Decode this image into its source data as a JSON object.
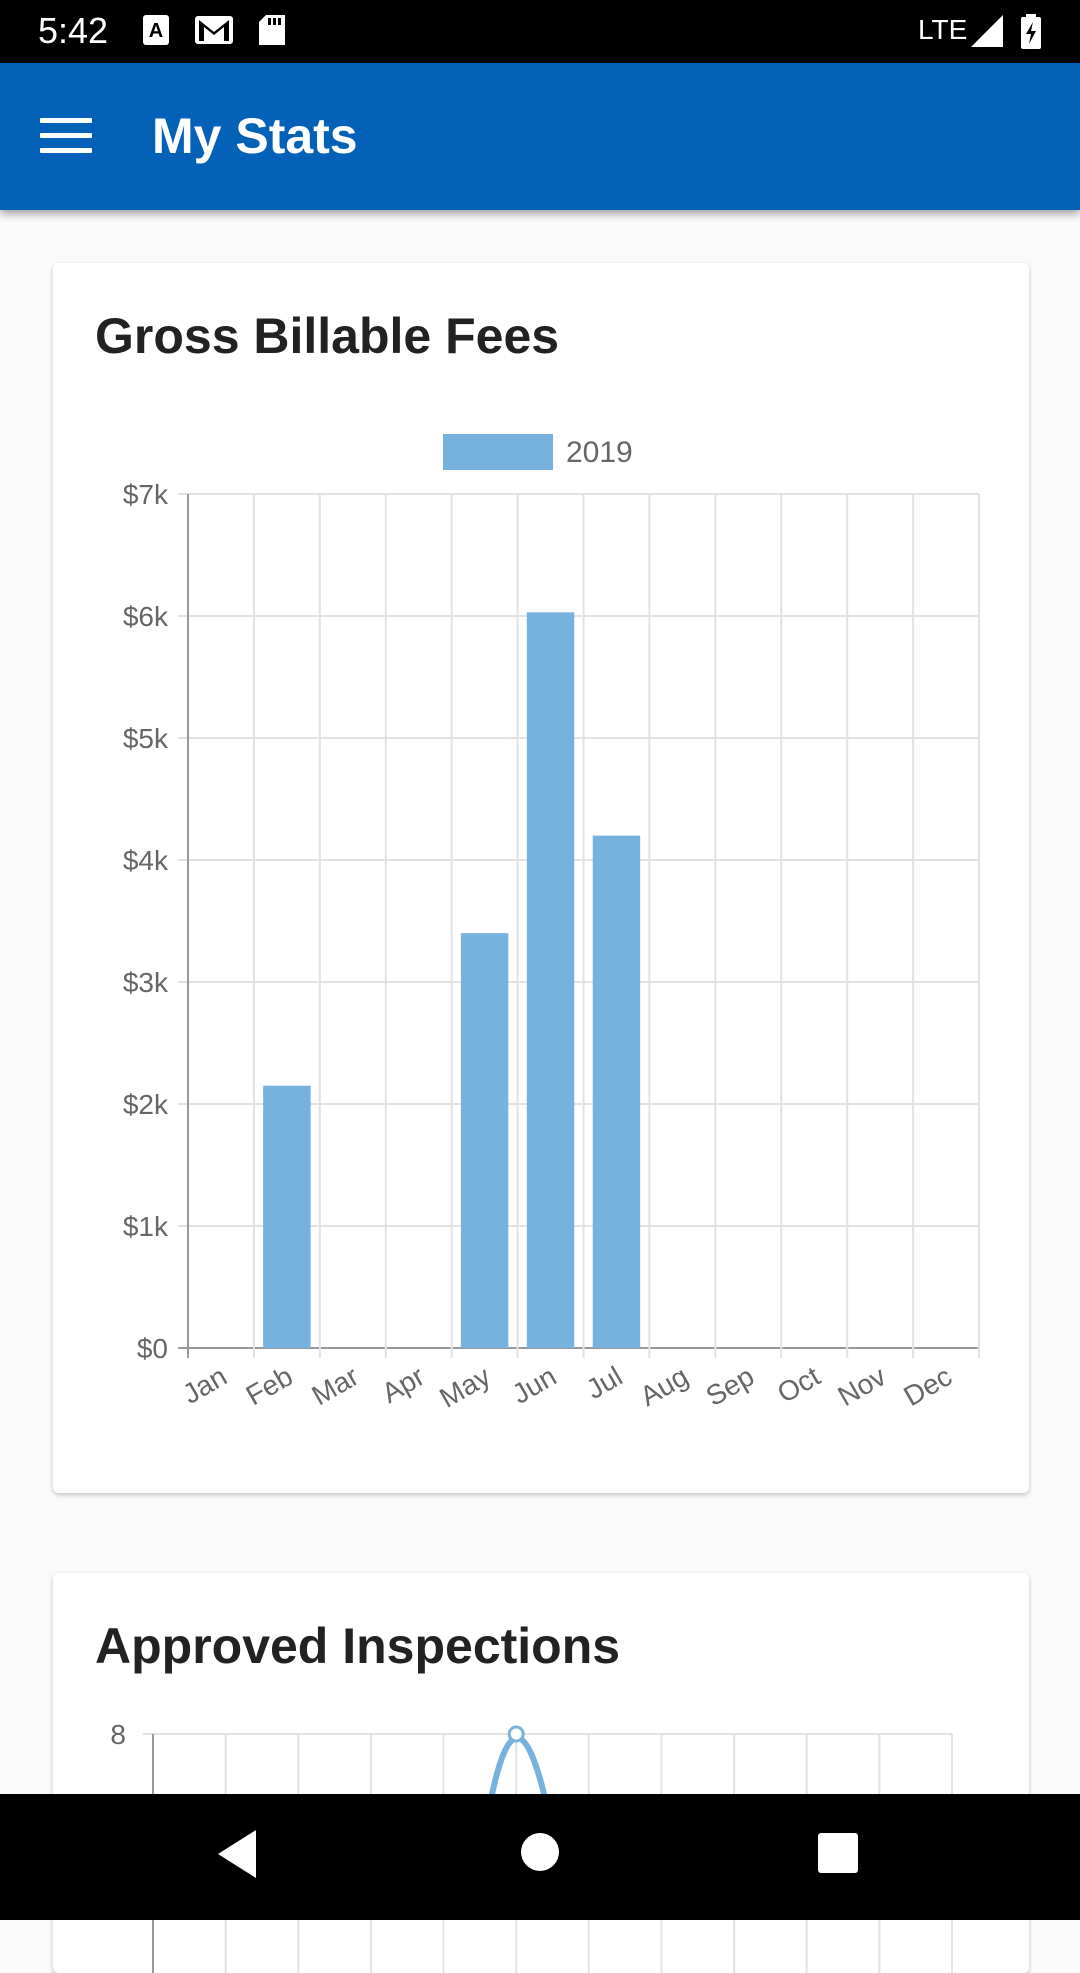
{
  "status_bar": {
    "time": "5:42",
    "network": "LTE"
  },
  "app_bar": {
    "title": "My Stats"
  },
  "cards": [
    {
      "title": "Gross Billable Fees"
    },
    {
      "title": "Approved Inspections"
    }
  ],
  "chart_data": [
    {
      "type": "bar",
      "title": "Gross Billable Fees",
      "categories": [
        "Jan",
        "Feb",
        "Mar",
        "Apr",
        "May",
        "Jun",
        "Jul",
        "Aug",
        "Sep",
        "Oct",
        "Nov",
        "Dec"
      ],
      "series": [
        {
          "name": "2019",
          "values": [
            0,
            2150,
            0,
            0,
            3400,
            6030,
            4200,
            0,
            0,
            0,
            0,
            0
          ]
        }
      ],
      "y_tick_labels": [
        "$0",
        "$1k",
        "$2k",
        "$3k",
        "$4k",
        "$5k",
        "$6k",
        "$7k"
      ],
      "ylim": [
        0,
        7000
      ],
      "grid": true,
      "legend": "top-center",
      "color": "#77b1de"
    },
    {
      "type": "line",
      "title": "Approved Inspections",
      "y_tick_labels": [
        "8"
      ],
      "peak_value": 8,
      "color": "#77b1de",
      "grid": true
    }
  ]
}
